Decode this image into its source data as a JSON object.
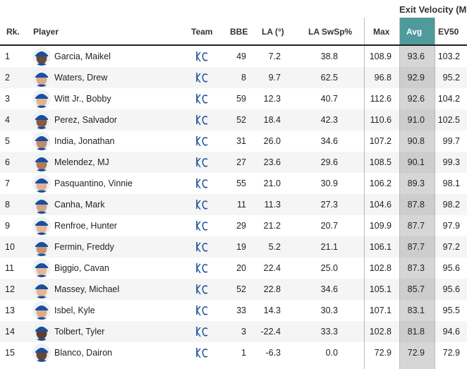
{
  "group_header": "Exit Velocity (MP",
  "columns": {
    "rank": "Rk.",
    "player": "Player",
    "team": "Team",
    "bbe": "BBE",
    "la": "LA (°)",
    "la_swsp": "LA SwSp%",
    "max": "Max",
    "avg": "Avg",
    "ev50": "EV50"
  },
  "colors": {
    "avg_header": "#4f9a9a",
    "avg_column": "#d6d6d6",
    "team_logo": "#1a4f9c",
    "cap_blue": "#1a4f9c"
  },
  "team_logo_icon": "kc-royals-logo-icon",
  "rows": [
    {
      "rank": "1",
      "player": "Garcia, Maikel",
      "bbe": "49",
      "la": "7.2",
      "la_swsp": "38.8",
      "max": "108.9",
      "avg": "93.6",
      "ev50": "103.2",
      "skin": "#6b4a36"
    },
    {
      "rank": "2",
      "player": "Waters, Drew",
      "bbe": "8",
      "la": "9.7",
      "la_swsp": "62.5",
      "max": "96.8",
      "avg": "92.9",
      "ev50": "95.2",
      "skin": "#d9a98a"
    },
    {
      "rank": "3",
      "player": "Witt Jr., Bobby",
      "bbe": "59",
      "la": "12.3",
      "la_swsp": "40.7",
      "max": "112.6",
      "avg": "92.6",
      "ev50": "104.2",
      "skin": "#e2b295"
    },
    {
      "rank": "4",
      "player": "Perez, Salvador",
      "bbe": "52",
      "la": "18.4",
      "la_swsp": "42.3",
      "max": "110.6",
      "avg": "91.0",
      "ev50": "102.5",
      "skin": "#8a5a3e"
    },
    {
      "rank": "5",
      "player": "India, Jonathan",
      "bbe": "31",
      "la": "26.0",
      "la_swsp": "34.6",
      "max": "107.2",
      "avg": "90.8",
      "ev50": "99.7",
      "skin": "#c08a6a"
    },
    {
      "rank": "6",
      "player": "Melendez, MJ",
      "bbe": "27",
      "la": "23.6",
      "la_swsp": "29.6",
      "max": "108.5",
      "avg": "90.1",
      "ev50": "99.3",
      "skin": "#b07a5a"
    },
    {
      "rank": "7",
      "player": "Pasquantino, Vinnie",
      "bbe": "55",
      "la": "21.0",
      "la_swsp": "30.9",
      "max": "106.2",
      "avg": "89.3",
      "ev50": "98.1",
      "skin": "#e0b094"
    },
    {
      "rank": "8",
      "player": "Canha, Mark",
      "bbe": "11",
      "la": "11.3",
      "la_swsp": "27.3",
      "max": "104.6",
      "avg": "87.8",
      "ev50": "98.2",
      "skin": "#d4a486"
    },
    {
      "rank": "9",
      "player": "Renfroe, Hunter",
      "bbe": "29",
      "la": "21.2",
      "la_swsp": "20.7",
      "max": "109.9",
      "avg": "87.7",
      "ev50": "97.9",
      "skin": "#e3b497"
    },
    {
      "rank": "10",
      "player": "Fermin, Freddy",
      "bbe": "19",
      "la": "5.2",
      "la_swsp": "21.1",
      "max": "106.1",
      "avg": "87.7",
      "ev50": "97.2",
      "skin": "#c89474"
    },
    {
      "rank": "11",
      "player": "Biggio, Cavan",
      "bbe": "20",
      "la": "22.4",
      "la_swsp": "25.0",
      "max": "102.8",
      "avg": "87.3",
      "ev50": "95.6",
      "skin": "#e6b89a"
    },
    {
      "rank": "12",
      "player": "Massey, Michael",
      "bbe": "52",
      "la": "22.8",
      "la_swsp": "34.6",
      "max": "105.1",
      "avg": "85.7",
      "ev50": "95.6",
      "skin": "#e4b596"
    },
    {
      "rank": "13",
      "player": "Isbel, Kyle",
      "bbe": "33",
      "la": "14.3",
      "la_swsp": "30.3",
      "max": "107.1",
      "avg": "83.1",
      "ev50": "95.5",
      "skin": "#ddab8c"
    },
    {
      "rank": "14",
      "player": "Tolbert, Tyler",
      "bbe": "3",
      "la": "-22.4",
      "la_swsp": "33.3",
      "max": "102.8",
      "avg": "81.8",
      "ev50": "94.6",
      "skin": "#5e3e2c"
    },
    {
      "rank": "15",
      "player": "Blanco, Dairon",
      "bbe": "1",
      "la": "-6.3",
      "la_swsp": "0.0",
      "max": "72.9",
      "avg": "72.9",
      "ev50": "72.9",
      "skin": "#6a4632"
    }
  ]
}
